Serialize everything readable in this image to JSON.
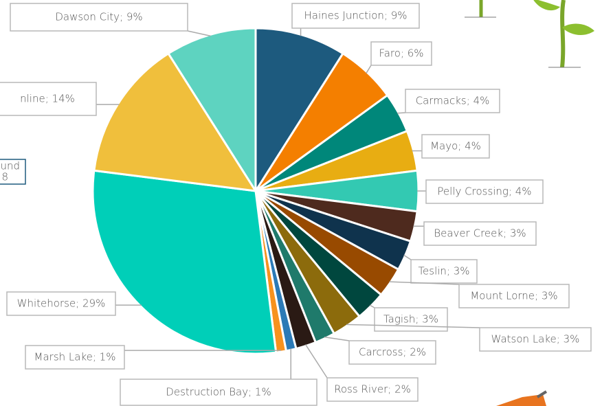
{
  "chart_data": {
    "type": "pie",
    "values": [
      9,
      6,
      4,
      4,
      4,
      3,
      3,
      3,
      3,
      3,
      2,
      2,
      1,
      1,
      29,
      14,
      9
    ],
    "value_labels": [
      "Haines Junction; 9%",
      "Faro; 6%",
      "Carmacks; 4%",
      "Mayo; 4%",
      "Pelly Crossing; 4%",
      "Beaver Creek; 3%",
      "Teslin; 3%",
      "Mount Lorne; 3%",
      "Tagish; 3%",
      "Watson Lake; 3%",
      "Carcross; 2%",
      "Ross River; 2%",
      "Destruction Bay; 1%",
      "Marsh Lake; 1%",
      "Whitehorse; 29%",
      "nline; 14%",
      "Dawson City; 9%"
    ],
    "colors": [
      "#1d5a7e",
      "#f47f00",
      "#00877a",
      "#e8ad12",
      "#33c9b2",
      "#4e2a1e",
      "#0f334d",
      "#984a00",
      "#00473e",
      "#8c6b0c",
      "#1f7a6b",
      "#2a1a14",
      "#2b7ab6",
      "#f7921e",
      "#00cfb8",
      "#f0bf3c",
      "#5ed3c0"
    ],
    "annotation_lines": [
      "und",
      "8"
    ]
  }
}
